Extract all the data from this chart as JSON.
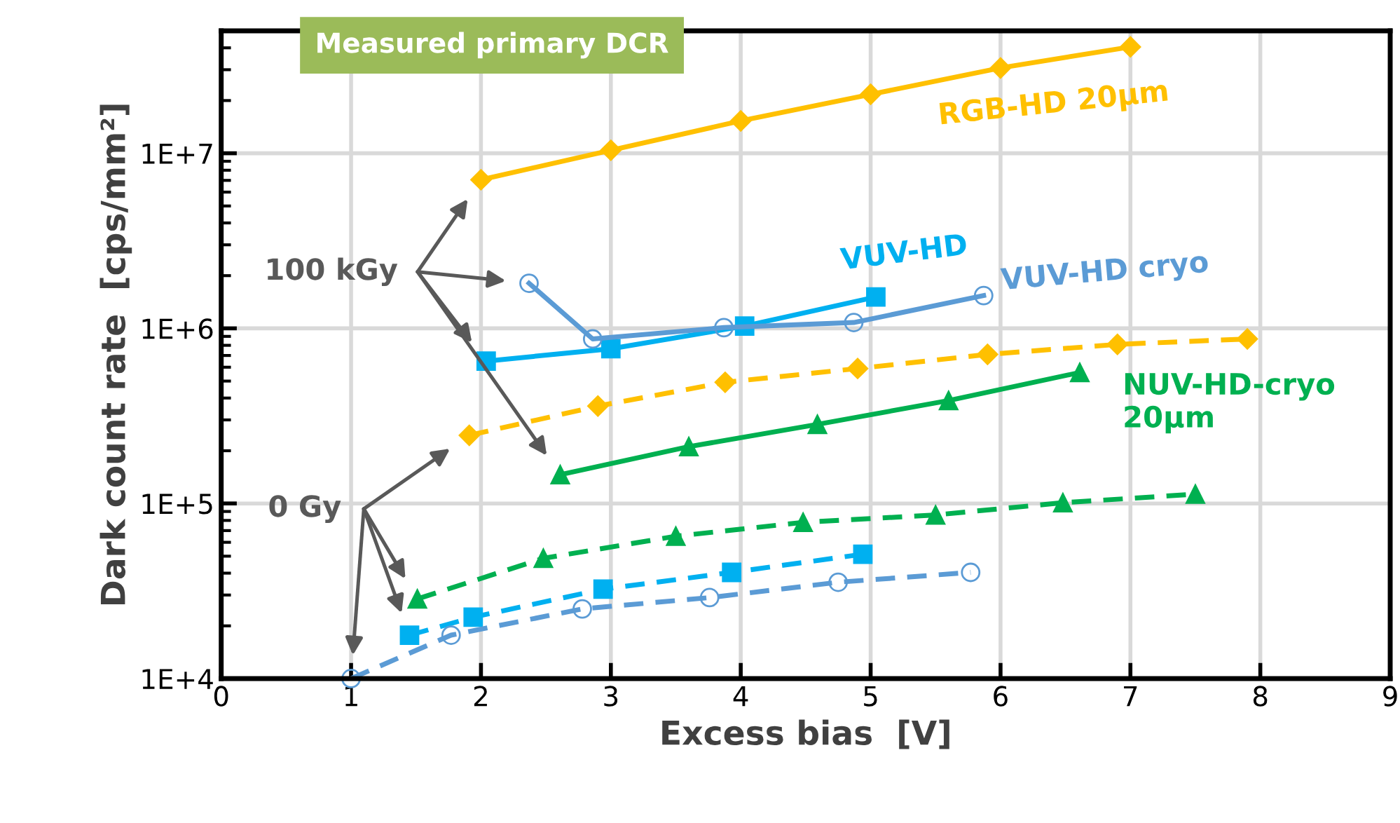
{
  "chart_data": {
    "type": "line",
    "title": "Measured primary DCR",
    "xlabel": "Excess bias  [V]",
    "ylabel": "Dark count rate  [cps/mm²]",
    "log": "y",
    "xlim": [
      0,
      9
    ],
    "xticks": [
      0,
      1,
      2,
      3,
      4,
      5,
      6,
      7,
      8,
      9
    ],
    "ylim": [
      10000,
      50000000
    ],
    "yticks": [
      {
        "value": 10000,
        "label": "1E+4"
      },
      {
        "value": 100000,
        "label": "1E+5"
      },
      {
        "value": 1000000,
        "label": "1E+6"
      },
      {
        "value": 10000000,
        "label": "1E+7"
      }
    ],
    "grid": true,
    "legend": false,
    "annotations": [
      "100 kGy",
      "0 Gy"
    ],
    "series": [
      {
        "name": "RGB-HD 20μm",
        "color": "#ffc000",
        "marker": "diamond",
        "line_style": "solid",
        "x": [
          2,
          3,
          4,
          5,
          6,
          7
        ],
        "values": [
          7060000,
          10400000,
          15300000,
          21700000,
          30700000,
          40500000
        ]
      },
      {
        "name": "VUV-HD",
        "color": "#00b0f0",
        "marker": "square",
        "line_style": "solid",
        "x": [
          2.04,
          3.0,
          4.03,
          5.04
        ],
        "values": [
          650000,
          765000,
          1030000,
          1510000
        ]
      },
      {
        "name": "VUV-HD cryo",
        "color": "#5b9bd5",
        "marker": "circle",
        "line_style": "solid",
        "x": [
          2.37,
          2.86,
          3.87,
          4.87,
          5.87
        ],
        "values": [
          1810000,
          870000,
          1010000,
          1080000,
          1540000
        ]
      },
      {
        "name": "NUV-HD-cryo\n20μm",
        "color": "#00b050",
        "marker": "triangle",
        "line_style": "solid",
        "x": [
          2.61,
          3.6,
          4.59,
          5.6,
          6.61
        ],
        "values": [
          146000,
          211000,
          283000,
          387000,
          560000
        ]
      },
      {
        "color": "#ffc000",
        "marker": "diamond",
        "line_style": "dashed",
        "x": [
          1.91,
          2.9,
          3.88,
          4.9,
          5.9,
          6.9,
          7.9
        ],
        "values": [
          245000,
          360000,
          492000,
          590000,
          710000,
          810000,
          870000
        ]
      },
      {
        "color": "#00b050",
        "marker": "triangle",
        "line_style": "dashed",
        "x": [
          1.51,
          2.48,
          3.5,
          4.48,
          5.5,
          6.48,
          7.5
        ],
        "values": [
          28500,
          48600,
          65000,
          78000,
          86000,
          101000,
          113000
        ]
      },
      {
        "color": "#00b0f0",
        "marker": "square",
        "line_style": "dashed",
        "x": [
          1.45,
          1.94,
          2.94,
          3.93,
          4.94
        ],
        "values": [
          17700,
          22400,
          32400,
          40400,
          51300
        ]
      },
      {
        "color": "#5b9bd5",
        "marker": "circle",
        "line_style": "dashed",
        "x": [
          1.0,
          1.77,
          2.78,
          3.76,
          4.75,
          5.77
        ],
        "values": [
          10000,
          17700,
          25000,
          29000,
          35500,
          40400
        ]
      }
    ]
  }
}
